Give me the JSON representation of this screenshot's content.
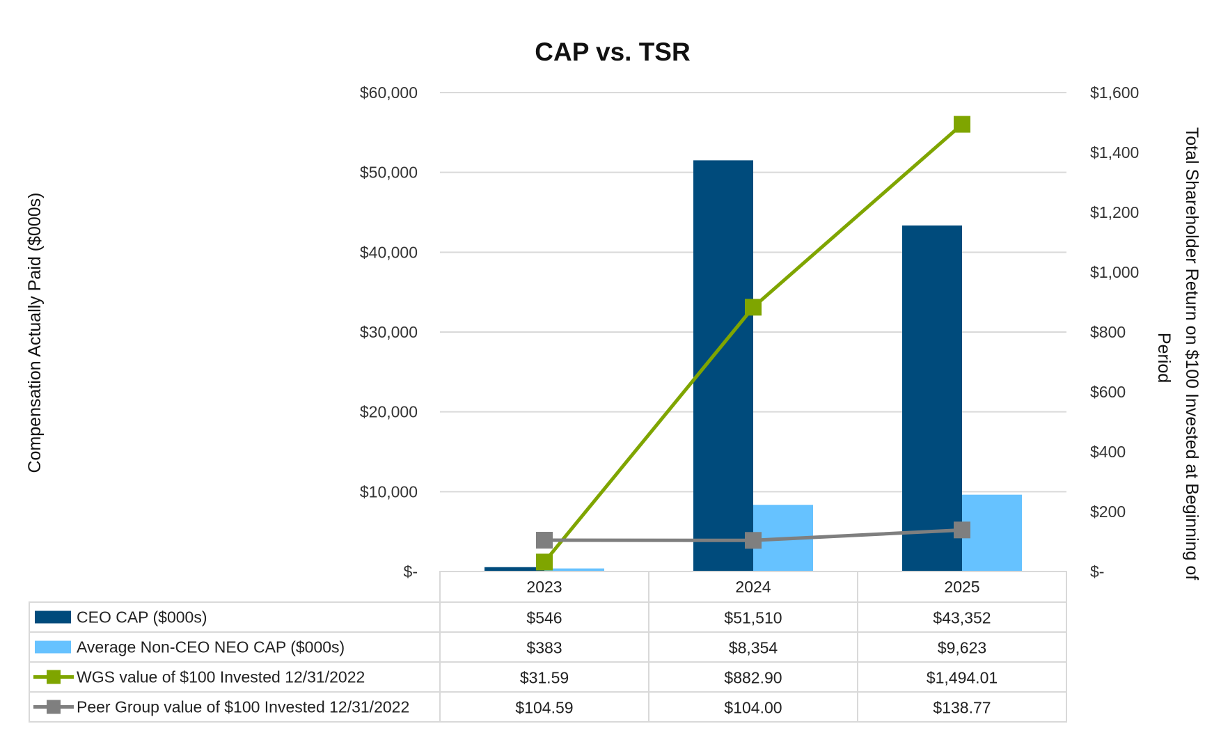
{
  "chart_data": {
    "type": "bar",
    "title": "CAP vs. TSR",
    "ylabel": "Compensation Actually Paid ($000s)",
    "y2label_line1": "Total Shareholder Return on $100 Invested at Beginning of",
    "y2label_line2": "Period",
    "categories": [
      "2023",
      "2024",
      "2025"
    ],
    "ylim": [
      0,
      60000
    ],
    "y2lim": [
      0,
      1600
    ],
    "y_ticks": [
      "$-",
      "$10,000",
      "$20,000",
      "$30,000",
      "$40,000",
      "$50,000",
      "$60,000"
    ],
    "y2_ticks": [
      "$-",
      "$200",
      "$400",
      "$600",
      "$800",
      "$1,000",
      "$1,200",
      "$1,400",
      "$1,600"
    ],
    "grid": true,
    "legend": "data-table",
    "series": [
      {
        "name": "CEO CAP ($000s)",
        "kind": "bar",
        "axis": "left",
        "color": "#004b7c",
        "values": [
          546,
          51510,
          43352
        ],
        "labels": [
          "$546",
          "$51,510",
          "$43,352"
        ]
      },
      {
        "name": "Average Non-CEO NEO CAP ($000s)",
        "kind": "bar",
        "axis": "left",
        "color": "#66c2ff",
        "values": [
          383,
          8354,
          9623
        ],
        "labels": [
          "$383",
          "$8,354",
          "$9,623"
        ]
      },
      {
        "name": "WGS value of $100 Invested 12/31/2022",
        "kind": "line",
        "axis": "right",
        "color": "#7fa500",
        "values": [
          31.59,
          882.9,
          1494.01
        ],
        "labels": [
          "$31.59",
          "$882.90",
          "$1,494.01"
        ]
      },
      {
        "name": "Peer Group value of $100 Invested 12/31/2022",
        "kind": "line",
        "axis": "right",
        "color": "#7f7f7f",
        "values": [
          104.59,
          104.0,
          138.77
        ],
        "labels": [
          "$104.59",
          "$104.00",
          "$138.77"
        ]
      }
    ]
  }
}
